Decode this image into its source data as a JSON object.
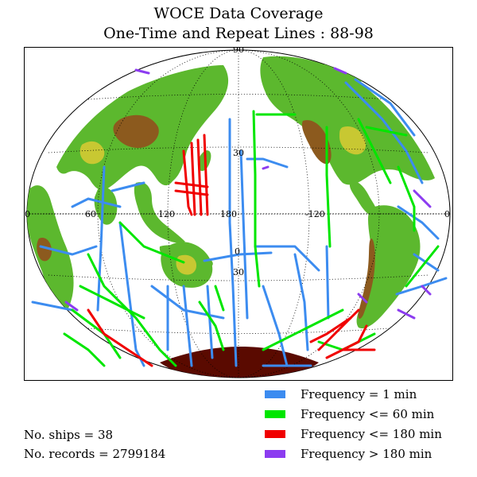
{
  "title_line1": "WOCE Data Coverage",
  "title_line2": "One-Time and Repeat Lines : 88-98",
  "map": {
    "projection": "Hammer-Aitoff, centered 180",
    "grid_labels": {
      "lat_90": "90",
      "lat_30n": "30",
      "lat_0": "0",
      "lat_30s": "30",
      "lon_0_left": "0",
      "lon_60": "60",
      "lon_120": "120",
      "lon_180": "180",
      "lon_m120": "-120",
      "lon_0_right": "0"
    },
    "colors": {
      "ocean": "#ffffff",
      "land_low": "#5cb82e",
      "land_mid": "#c8c832",
      "land_high": "#8c5a1e",
      "ice": "#5a0a00"
    }
  },
  "legend": [
    {
      "label": "Frequency = 1 min",
      "color": "#3c8cf0"
    },
    {
      "label": "Frequency <= 60 min",
      "color": "#00e600"
    },
    {
      "label": "Frequency <= 180 min",
      "color": "#f00000"
    },
    {
      "label": "Frequency > 180 min",
      "color": "#8c3cf0"
    }
  ],
  "stats": {
    "ships": "No. ships = 38",
    "records": "No. records = 2799184"
  }
}
